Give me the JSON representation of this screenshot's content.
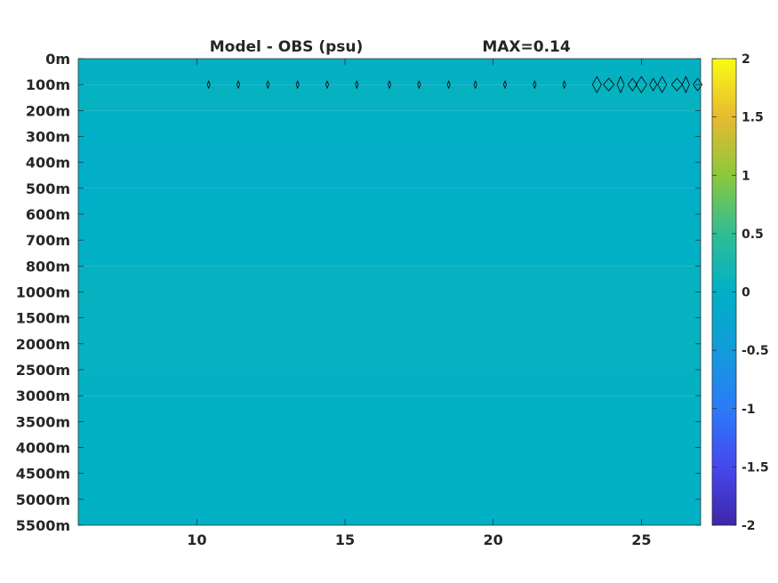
{
  "chart_data": {
    "type": "heatmap",
    "title_left": "Model - OBS (psu)",
    "title_right": "MAX=0.14",
    "xlabel": "",
    "ylabel": "",
    "xlim": [
      6,
      27
    ],
    "x_ticks": [
      10,
      15,
      20,
      25
    ],
    "y_tick_labels": [
      "0m",
      "100m",
      "200m",
      "300m",
      "400m",
      "500m",
      "600m",
      "700m",
      "800m",
      "1000m",
      "1500m",
      "2000m",
      "2500m",
      "3000m",
      "3500m",
      "4000m",
      "4500m",
      "5000m",
      "5500m"
    ],
    "colorbar": {
      "range": [
        -2,
        2
      ],
      "ticks": [
        2,
        1.5,
        1,
        0.5,
        0,
        -0.5,
        -1,
        -1.5,
        -2
      ],
      "tick_labels": [
        "2",
        "1.5",
        "1",
        "0.5",
        "0",
        "-0.5",
        "-1",
        "-1.5",
        "-2"
      ],
      "colormap": "parula"
    },
    "bands": [
      {
        "depth_from": "0m",
        "depth_to": "100m",
        "value": 0.04
      },
      {
        "depth_from": "100m",
        "depth_to": "200m",
        "value": 0.06
      },
      {
        "depth_from": "200m",
        "depth_to": "300m",
        "value": 0.01
      },
      {
        "depth_from": "300m",
        "depth_to": "500m",
        "value": -0.04
      },
      {
        "depth_from": "500m",
        "depth_to": "600m",
        "value": -0.02
      },
      {
        "depth_from": "600m",
        "depth_to": "800m",
        "value": 0.01
      },
      {
        "depth_from": "800m",
        "depth_to": "2500m",
        "value": 0.06
      },
      {
        "depth_from": "2500m",
        "depth_to": "3000m",
        "value": 0.03
      },
      {
        "depth_from": "3000m",
        "depth_to": "5500m",
        "value": 0.02
      }
    ],
    "contour_level": 0.1,
    "contour_depth": "100m",
    "contour_x": [
      10.4,
      11.4,
      12.4,
      13.4,
      14.4,
      15.4,
      16.5,
      17.5,
      18.5,
      19.4,
      20.4,
      21.4,
      22.4,
      23.5,
      23.9,
      24.3,
      24.7,
      25,
      25.4,
      25.7,
      26.2,
      26.5,
      26.9
    ]
  },
  "colors": {
    "background": "#ffffff",
    "axis": "#262626",
    "contour": "#000000"
  }
}
